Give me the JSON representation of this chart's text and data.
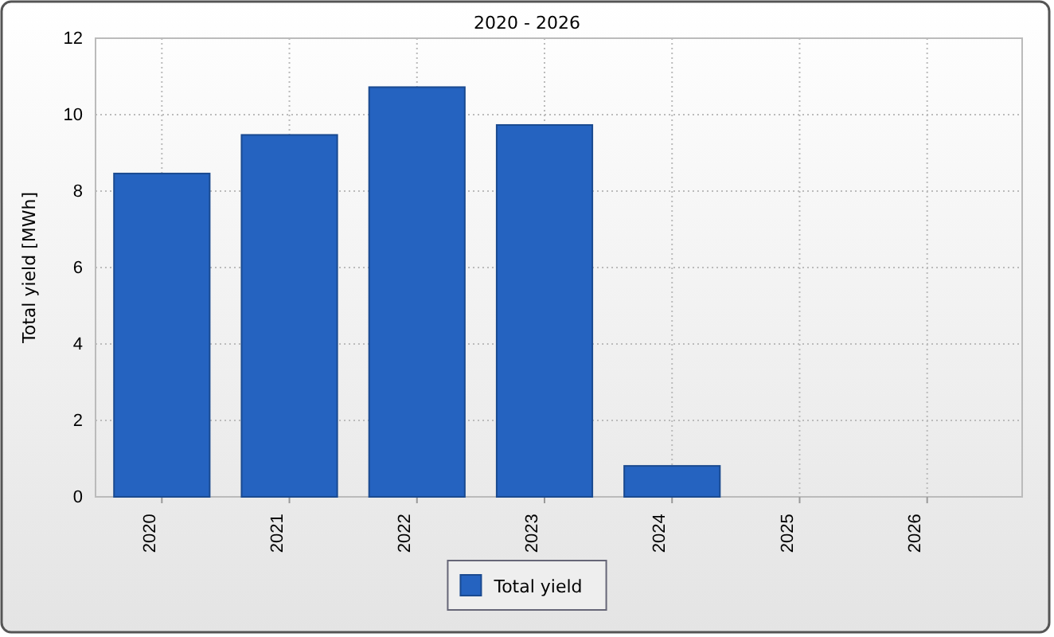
{
  "chart_data": {
    "type": "bar",
    "title": "2020 - 2026",
    "ylabel": "Total yield [MWh]",
    "categories": [
      "2020",
      "2021",
      "2022",
      "2023",
      "2024",
      "2025",
      "2026"
    ],
    "series": [
      {
        "name": "Total yield",
        "color": "#2563c0",
        "values": [
          8.46,
          9.47,
          10.72,
          9.73,
          0.81,
          null,
          null
        ]
      }
    ],
    "ylim": [
      0,
      12
    ],
    "yticks": [
      0,
      2,
      4,
      6,
      8,
      10,
      12
    ],
    "grid": true,
    "legend": "bottom"
  }
}
